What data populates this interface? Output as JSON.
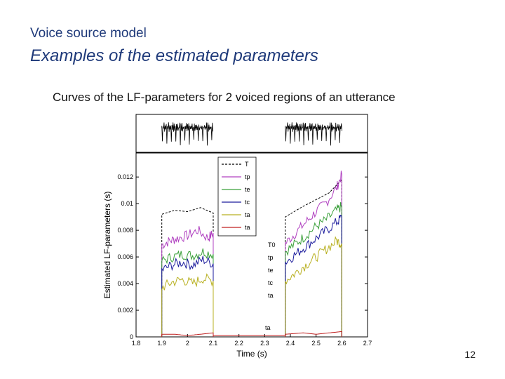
{
  "slide": {
    "title": "Voice source model",
    "subtitle": "Examples of the estimated parameters",
    "caption": "Curves of the LF-parameters for 2 voiced regions of an utterance",
    "page_number": "12"
  },
  "chart_data": {
    "type": "line",
    "title": "",
    "xlabel": "Time (s)",
    "ylabel": "Estimated LF-parameters (s)",
    "xlim": [
      1.8,
      2.7
    ],
    "ylim": [
      0,
      0.0138
    ],
    "x_ticks": [
      "1.8",
      "1.9",
      "2",
      "2.1",
      "2.2",
      "2.3",
      "2.4",
      "2.5",
      "2.6",
      "2.7"
    ],
    "y_ticks": [
      "0",
      "0.002",
      "0.004",
      "0.006",
      "0.008",
      "0.01",
      "0.012"
    ],
    "grid": false,
    "legend_position": "top-center",
    "series": [
      {
        "name": "T0",
        "legend_label": "T",
        "color": "#000000",
        "dashed": true,
        "segments": [
          {
            "x": [
              1.9,
              1.95,
              2.0,
              2.05,
              2.1
            ],
            "y": [
              0.0092,
              0.0095,
              0.0094,
              0.0097,
              0.0093
            ]
          },
          {
            "x": [
              2.38,
              2.45,
              2.5,
              2.55,
              2.6
            ],
            "y": [
              0.009,
              0.0098,
              0.0103,
              0.0108,
              0.0118
            ]
          }
        ]
      },
      {
        "name": "tp",
        "legend_label": "tp",
        "color": "#b040c0",
        "segments": [
          {
            "x": [
              1.9,
              1.93,
              1.96,
              2.0,
              2.04,
              2.08,
              2.1
            ],
            "y": [
              0.0069,
              0.0072,
              0.0074,
              0.0076,
              0.008,
              0.0074,
              0.0078
            ]
          },
          {
            "x": [
              2.38,
              2.42,
              2.46,
              2.5,
              2.54,
              2.58,
              2.6
            ],
            "y": [
              0.007,
              0.0078,
              0.0086,
              0.0094,
              0.0101,
              0.0112,
              0.0122
            ]
          }
        ]
      },
      {
        "name": "te",
        "legend_label": "te",
        "color": "#3aa03a",
        "segments": [
          {
            "x": [
              1.9,
              1.94,
              1.98,
              2.02,
              2.06,
              2.1
            ],
            "y": [
              0.0057,
              0.006,
              0.0062,
              0.0061,
              0.0064,
              0.0062
            ]
          },
          {
            "x": [
              2.38,
              2.42,
              2.46,
              2.5,
              2.54,
              2.58,
              2.6
            ],
            "y": [
              0.0064,
              0.007,
              0.0076,
              0.0083,
              0.0088,
              0.0095,
              0.0098
            ]
          }
        ]
      },
      {
        "name": "tc",
        "legend_label": "tc",
        "color": "#1a1a9c",
        "segments": [
          {
            "x": [
              1.9,
              1.94,
              1.98,
              2.02,
              2.06,
              2.1
            ],
            "y": [
              0.005,
              0.0054,
              0.0056,
              0.0054,
              0.0058,
              0.0055
            ]
          },
          {
            "x": [
              2.38,
              2.42,
              2.46,
              2.5,
              2.54,
              2.58,
              2.6
            ],
            "y": [
              0.0056,
              0.0062,
              0.0068,
              0.0074,
              0.008,
              0.0086,
              0.009
            ]
          }
        ]
      },
      {
        "name": "ta_yellow",
        "legend_label": "ta",
        "color": "#b8b020",
        "segments": [
          {
            "x": [
              1.9,
              1.94,
              1.98,
              2.02,
              2.06,
              2.1
            ],
            "y": [
              0.0037,
              0.0041,
              0.0043,
              0.004,
              0.0044,
              0.0042
            ]
          },
          {
            "x": [
              2.38,
              2.42,
              2.46,
              2.5,
              2.54,
              2.58,
              2.6
            ],
            "y": [
              0.0042,
              0.0048,
              0.0054,
              0.006,
              0.0066,
              0.0072,
              0.007
            ]
          }
        ]
      },
      {
        "name": "ta",
        "legend_label": "ta",
        "color": "#c02020",
        "segments": [
          {
            "x": [
              1.9,
              1.95,
              2.0,
              2.05,
              2.1
            ],
            "y": [
              0.0002,
              0.0002,
              0.0001,
              0.0002,
              0.0003
            ]
          },
          {
            "x": [
              2.38,
              2.45,
              2.5,
              2.55,
              2.6
            ],
            "y": [
              0.0002,
              0.0003,
              0.0002,
              0.0003,
              0.0004
            ]
          }
        ]
      }
    ],
    "side_labels": [
      "T0",
      "tp",
      "te",
      "tc",
      "ta"
    ],
    "waveform": {
      "regions": [
        [
          1.9,
          2.1
        ],
        [
          2.38,
          2.6
        ]
      ]
    }
  }
}
